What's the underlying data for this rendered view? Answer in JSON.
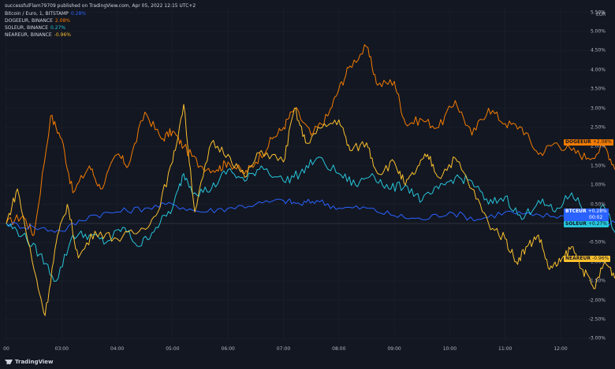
{
  "header": {
    "publisher": "successfulFlam79709 published on TradingView.com, Apr 05, 2022 12:15 UTC+2"
  },
  "legend": [
    {
      "label": "Bitcoin / Euro, 1, BITSTAMP",
      "value": "0.28%",
      "color": "#2962ff"
    },
    {
      "label": "DOGEEUR, BINANCE",
      "value": "2.08%",
      "color": "#f57c00"
    },
    {
      "label": "SOLEUR, BINANCE",
      "value": "0.27%",
      "color": "#26c6da"
    },
    {
      "label": "NEAREUR, BINANCE",
      "value": "-0.96%",
      "color": "#fbc02d"
    }
  ],
  "price_scale": {
    "currency": "EUR",
    "ticks": [
      "5.50%",
      "5.00%",
      "4.50%",
      "4.00%",
      "3.50%",
      "3.00%",
      "2.50%",
      "2.00%",
      "1.50%",
      "1.00%",
      "0.50%",
      "0%",
      "-0.50%",
      "-1.00%",
      "-1.50%",
      "-2.00%",
      "-2.50%",
      "-3.00%"
    ]
  },
  "time_scale": {
    "ticks": [
      "00",
      "03:00",
      "04:00",
      "05:00",
      "06:00",
      "07:00",
      "08:00",
      "09:00",
      "10:00",
      "11:00",
      "12:00"
    ]
  },
  "tags": [
    {
      "name": "DOGEEUR",
      "value": "+2.08%",
      "color": "#f57c00"
    },
    {
      "name": "BTCEUR",
      "value": "+0.28%",
      "extra": "00:02",
      "color": "#2962ff"
    },
    {
      "name": "SOLEUR",
      "value": "+0.27%",
      "color": "#26c6da"
    },
    {
      "name": "NEAREUR",
      "value": "-0.96%",
      "color": "#fbc02d"
    }
  ],
  "branding": {
    "logo_text": "TradingView"
  },
  "chart_data": {
    "type": "line",
    "x_ticks": [
      "00",
      "03:00",
      "04:00",
      "05:00",
      "06:00",
      "07:00",
      "08:00",
      "09:00",
      "10:00",
      "11:00",
      "12:00"
    ],
    "ylim": [
      -3.2,
      5.6
    ],
    "y_unit": "%",
    "series": [
      {
        "name": "DOGEEUR",
        "color": "#f57c00",
        "points": [
          [
            0,
            0
          ],
          [
            0.3,
            0.2
          ],
          [
            0.5,
            -0.3
          ],
          [
            0.8,
            2.8
          ],
          [
            1,
            2.2
          ],
          [
            1.2,
            0.8
          ],
          [
            1.5,
            1.5
          ],
          [
            1.7,
            0.9
          ],
          [
            2,
            1.8
          ],
          [
            2.2,
            1.5
          ],
          [
            2.5,
            2.9
          ],
          [
            2.8,
            2.2
          ],
          [
            3,
            2.4
          ],
          [
            3.2,
            2.0
          ],
          [
            3.5,
            1.5
          ],
          [
            3.8,
            1.4
          ],
          [
            4,
            1.6
          ],
          [
            4.3,
            1.3
          ],
          [
            4.5,
            1.6
          ],
          [
            4.8,
            2.2
          ],
          [
            5,
            2.5
          ],
          [
            5.2,
            3.0
          ],
          [
            5.5,
            2.3
          ],
          [
            5.8,
            2.8
          ],
          [
            6,
            3.5
          ],
          [
            6.2,
            4.1
          ],
          [
            6.5,
            4.6
          ],
          [
            6.7,
            3.6
          ],
          [
            7,
            3.7
          ],
          [
            7.2,
            2.6
          ],
          [
            7.5,
            2.7
          ],
          [
            7.8,
            2.5
          ],
          [
            8.1,
            3.2
          ],
          [
            8.4,
            2.3
          ],
          [
            8.7,
            3.0
          ],
          [
            9,
            2.6
          ],
          [
            9.3,
            2.5
          ],
          [
            9.6,
            1.8
          ],
          [
            9.9,
            2.1
          ],
          [
            10.2,
            1.9
          ],
          [
            10.5,
            1.7
          ],
          [
            10.8,
            2.0
          ],
          [
            11,
            1.4
          ],
          [
            11.2,
            2.08
          ]
        ]
      },
      {
        "name": "BTCEUR",
        "color": "#2962ff",
        "points": [
          [
            0,
            0
          ],
          [
            0.5,
            -0.1
          ],
          [
            1,
            -0.2
          ],
          [
            1.5,
            0.2
          ],
          [
            2,
            0.3
          ],
          [
            2.5,
            0.4
          ],
          [
            3,
            0.5
          ],
          [
            3.5,
            0.3
          ],
          [
            4,
            0.4
          ],
          [
            4.5,
            0.5
          ],
          [
            5,
            0.6
          ],
          [
            5.3,
            0.5
          ],
          [
            5.6,
            0.6
          ],
          [
            6,
            0.4
          ],
          [
            6.5,
            0.4
          ],
          [
            7,
            0.2
          ],
          [
            7.5,
            0.1
          ],
          [
            8,
            0.3
          ],
          [
            8.5,
            0.1
          ],
          [
            9,
            0.3
          ],
          [
            9.5,
            0.2
          ],
          [
            10,
            0.2
          ],
          [
            10.5,
            0.1
          ],
          [
            11,
            0
          ],
          [
            11.2,
            0.28
          ]
        ]
      },
      {
        "name": "SOLEUR",
        "color": "#26c6da",
        "points": [
          [
            0,
            0
          ],
          [
            0.3,
            -0.3
          ],
          [
            0.6,
            -0.8
          ],
          [
            0.9,
            -1.5
          ],
          [
            1.2,
            -0.3
          ],
          [
            1.5,
            -0.3
          ],
          [
            1.8,
            -0.5
          ],
          [
            2.1,
            -0.1
          ],
          [
            2.4,
            -0.6
          ],
          [
            2.7,
            -0.1
          ],
          [
            3,
            0.4
          ],
          [
            3.2,
            1.3
          ],
          [
            3.4,
            0.8
          ],
          [
            3.7,
            0.9
          ],
          [
            4,
            1.4
          ],
          [
            4.3,
            1.1
          ],
          [
            4.6,
            1.5
          ],
          [
            5,
            1.1
          ],
          [
            5.3,
            1.3
          ],
          [
            5.6,
            1.7
          ],
          [
            6,
            1.3
          ],
          [
            6.3,
            1.0
          ],
          [
            6.6,
            1.3
          ],
          [
            6.9,
            0.9
          ],
          [
            7.2,
            1.0
          ],
          [
            7.5,
            0.6
          ],
          [
            7.8,
            0.9
          ],
          [
            8.1,
            1.2
          ],
          [
            8.4,
            1.1
          ],
          [
            8.7,
            0.5
          ],
          [
            9,
            0.7
          ],
          [
            9.3,
            0.1
          ],
          [
            9.6,
            0.6
          ],
          [
            9.9,
            0.3
          ],
          [
            10.2,
            0.8
          ],
          [
            10.5,
            0.2
          ],
          [
            10.8,
            0.4
          ],
          [
            11,
            -0.3
          ],
          [
            11.2,
            0.27
          ]
        ]
      },
      {
        "name": "NEAREUR",
        "color": "#fbc02d",
        "points": [
          [
            0,
            0
          ],
          [
            0.2,
            0.9
          ],
          [
            0.5,
            -1.2
          ],
          [
            0.7,
            -2.4
          ],
          [
            0.9,
            -0.5
          ],
          [
            1.1,
            0.5
          ],
          [
            1.3,
            -0.9
          ],
          [
            1.6,
            -0.2
          ],
          [
            2,
            -0.4
          ],
          [
            2.4,
            -0.2
          ],
          [
            2.7,
            0.2
          ],
          [
            3,
            1.6
          ],
          [
            3.2,
            3.1
          ],
          [
            3.4,
            0.3
          ],
          [
            3.7,
            2.1
          ],
          [
            4,
            1.8
          ],
          [
            4.3,
            1.2
          ],
          [
            4.6,
            1.9
          ],
          [
            5,
            1.6
          ],
          [
            5.2,
            3.0
          ],
          [
            5.4,
            2.1
          ],
          [
            5.7,
            2.5
          ],
          [
            6,
            2.7
          ],
          [
            6.2,
            1.9
          ],
          [
            6.5,
            2.1
          ],
          [
            6.7,
            1.3
          ],
          [
            7,
            1.6
          ],
          [
            7.2,
            1.0
          ],
          [
            7.4,
            1.4
          ],
          [
            7.6,
            1.8
          ],
          [
            7.8,
            1.2
          ],
          [
            8.1,
            1.7
          ],
          [
            8.4,
            0.9
          ],
          [
            8.7,
            0
          ],
          [
            9,
            -0.4
          ],
          [
            9.2,
            -1.0
          ],
          [
            9.4,
            -0.6
          ],
          [
            9.6,
            -0.3
          ],
          [
            9.8,
            -1.2
          ],
          [
            10,
            -1.0
          ],
          [
            10.2,
            -0.6
          ],
          [
            10.4,
            -1.2
          ],
          [
            10.6,
            -1.7
          ],
          [
            10.8,
            -1.0
          ],
          [
            11,
            -1.4
          ],
          [
            11.2,
            -0.96
          ]
        ]
      }
    ]
  }
}
